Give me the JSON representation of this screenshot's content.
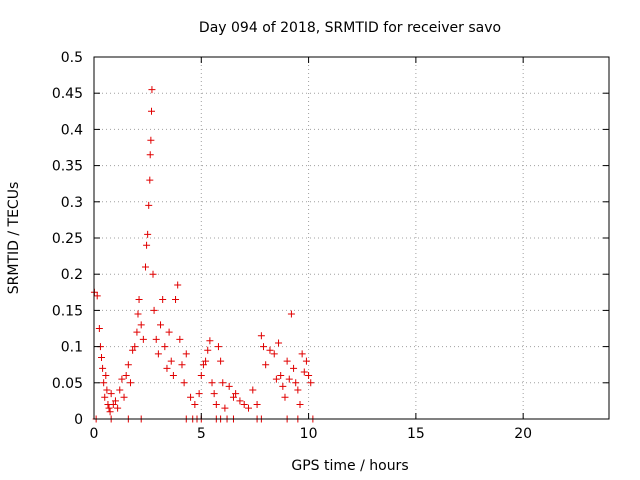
{
  "chart_data": {
    "type": "scatter",
    "title": "Day 094 of 2018, SRMTID for receiver savo",
    "xlabel": "GPS time / hours",
    "ylabel": "SRMTID / TECUs",
    "xlim": [
      0,
      24
    ],
    "ylim": [
      0,
      0.5
    ],
    "xticks": [
      0,
      5,
      10,
      15,
      20
    ],
    "xtick_labels": [
      "0",
      "5",
      "10",
      "15",
      "20"
    ],
    "yticks": [
      0,
      0.05,
      0.1,
      0.15,
      0.2,
      0.25,
      0.3,
      0.35,
      0.4,
      0.45,
      0.5
    ],
    "ytick_labels": [
      "0",
      "0.05",
      "0.1",
      "0.15",
      "0.2",
      "0.25",
      "0.3",
      "0.35",
      "0.4",
      "0.45",
      "0.5"
    ],
    "grid": true,
    "marker": "+",
    "color": "#e00000",
    "series": [
      {
        "name": "SRMTID",
        "points": [
          [
            0.02,
            0.175
          ],
          [
            0.15,
            0.17
          ],
          [
            0.25,
            0.125
          ],
          [
            0.3,
            0.1
          ],
          [
            0.35,
            0.085
          ],
          [
            0.4,
            0.07
          ],
          [
            0.45,
            0.05
          ],
          [
            0.5,
            0.03
          ],
          [
            0.55,
            0.06
          ],
          [
            0.6,
            0.04
          ],
          [
            0.65,
            0.02
          ],
          [
            0.7,
            0.015
          ],
          [
            0.75,
            0.01
          ],
          [
            0.8,
            0.035
          ],
          [
            0.9,
            0.02
          ],
          [
            1.0,
            0.025
          ],
          [
            1.1,
            0.015
          ],
          [
            1.2,
            0.04
          ],
          [
            1.3,
            0.055
          ],
          [
            1.4,
            0.03
          ],
          [
            1.5,
            0.06
          ],
          [
            1.6,
            0.075
          ],
          [
            1.7,
            0.05
          ],
          [
            1.8,
            0.095
          ],
          [
            1.9,
            0.1
          ],
          [
            2.0,
            0.12
          ],
          [
            2.05,
            0.145
          ],
          [
            2.1,
            0.165
          ],
          [
            2.2,
            0.13
          ],
          [
            2.3,
            0.11
          ],
          [
            2.4,
            0.21
          ],
          [
            2.45,
            0.24
          ],
          [
            2.5,
            0.255
          ],
          [
            2.55,
            0.295
          ],
          [
            2.6,
            0.33
          ],
          [
            2.62,
            0.365
          ],
          [
            2.65,
            0.385
          ],
          [
            2.68,
            0.425
          ],
          [
            2.7,
            0.455
          ],
          [
            2.75,
            0.2
          ],
          [
            2.8,
            0.15
          ],
          [
            2.9,
            0.11
          ],
          [
            3.0,
            0.09
          ],
          [
            3.1,
            0.13
          ],
          [
            3.2,
            0.165
          ],
          [
            3.3,
            0.1
          ],
          [
            3.4,
            0.07
          ],
          [
            3.5,
            0.12
          ],
          [
            3.6,
            0.08
          ],
          [
            3.7,
            0.06
          ],
          [
            3.8,
            0.165
          ],
          [
            3.9,
            0.185
          ],
          [
            4.0,
            0.11
          ],
          [
            4.1,
            0.075
          ],
          [
            4.2,
            0.05
          ],
          [
            4.3,
            0.09
          ],
          [
            4.5,
            0.03
          ],
          [
            4.7,
            0.02
          ],
          [
            4.9,
            0.035
          ],
          [
            5.0,
            0.06
          ],
          [
            5.1,
            0.075
          ],
          [
            5.2,
            0.08
          ],
          [
            5.3,
            0.095
          ],
          [
            5.4,
            0.108
          ],
          [
            5.5,
            0.05
          ],
          [
            5.6,
            0.035
          ],
          [
            5.7,
            0.02
          ],
          [
            5.8,
            0.1
          ],
          [
            5.9,
            0.08
          ],
          [
            6.0,
            0.05
          ],
          [
            6.1,
            0.015
          ],
          [
            6.3,
            0.045
          ],
          [
            6.5,
            0.03
          ],
          [
            6.6,
            0.035
          ],
          [
            6.8,
            0.025
          ],
          [
            7.0,
            0.02
          ],
          [
            7.2,
            0.015
          ],
          [
            7.4,
            0.04
          ],
          [
            7.6,
            0.02
          ],
          [
            7.8,
            0.115
          ],
          [
            7.9,
            0.1
          ],
          [
            8.0,
            0.075
          ],
          [
            8.2,
            0.095
          ],
          [
            8.4,
            0.09
          ],
          [
            8.5,
            0.055
          ],
          [
            8.6,
            0.105
          ],
          [
            8.7,
            0.06
          ],
          [
            8.8,
            0.045
          ],
          [
            8.9,
            0.03
          ],
          [
            9.0,
            0.08
          ],
          [
            9.1,
            0.055
          ],
          [
            9.2,
            0.145
          ],
          [
            9.3,
            0.07
          ],
          [
            9.4,
            0.05
          ],
          [
            9.5,
            0.04
          ],
          [
            9.6,
            0.02
          ],
          [
            9.7,
            0.09
          ],
          [
            9.8,
            0.065
          ],
          [
            9.9,
            0.08
          ],
          [
            10.0,
            0.06
          ],
          [
            10.1,
            0.05
          ],
          [
            0.1,
            0.0
          ],
          [
            0.8,
            0.0
          ],
          [
            1.6,
            0.0
          ],
          [
            2.2,
            0.0
          ],
          [
            4.3,
            0.0
          ],
          [
            4.6,
            0.0
          ],
          [
            4.8,
            0.0
          ],
          [
            5.0,
            0.0
          ],
          [
            5.7,
            0.0
          ],
          [
            5.9,
            0.0
          ],
          [
            6.2,
            0.0
          ],
          [
            6.5,
            0.0
          ],
          [
            7.6,
            0.0
          ],
          [
            7.8,
            0.0
          ],
          [
            9.0,
            0.0
          ],
          [
            9.5,
            0.0
          ],
          [
            10.2,
            0.0
          ]
        ]
      }
    ]
  }
}
